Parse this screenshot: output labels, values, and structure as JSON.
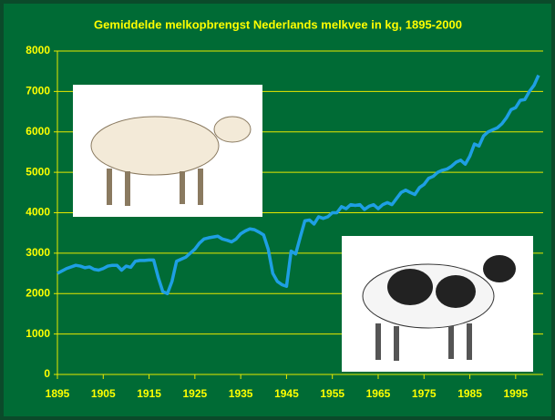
{
  "chart_data": {
    "type": "line",
    "title": "Gemiddelde melkopbrengst  Nederlands melkvee in kg, 1895-2000",
    "x": [
      1895,
      1897,
      1899,
      1900,
      1901,
      1902,
      1903,
      1904,
      1905,
      1906,
      1907,
      1908,
      1909,
      1910,
      1911,
      1912,
      1913,
      1914,
      1915,
      1916,
      1917,
      1918,
      1919,
      1920,
      1921,
      1922,
      1923,
      1924,
      1925,
      1926,
      1927,
      1928,
      1929,
      1930,
      1931,
      1932,
      1933,
      1934,
      1935,
      1936,
      1937,
      1938,
      1939,
      1940,
      1941,
      1942,
      1943,
      1944,
      1945,
      1946,
      1947,
      1948,
      1949,
      1950,
      1951,
      1952,
      1953,
      1954,
      1955,
      1956,
      1957,
      1958,
      1959,
      1960,
      1961,
      1962,
      1963,
      1964,
      1965,
      1966,
      1967,
      1968,
      1969,
      1970,
      1971,
      1972,
      1973,
      1974,
      1975,
      1976,
      1977,
      1978,
      1979,
      1980,
      1981,
      1982,
      1983,
      1984,
      1985,
      1986,
      1987,
      1988,
      1989,
      1990,
      1991,
      1992,
      1993,
      1994,
      1995,
      1996,
      1997,
      1998,
      1999,
      2000
    ],
    "series": [
      {
        "color": "#1e9fe3",
        "values": [
          2500,
          2620,
          2700,
          2680,
          2640,
          2660,
          2600,
          2580,
          2620,
          2680,
          2700,
          2700,
          2580,
          2680,
          2650,
          2800,
          2820,
          2820,
          2830,
          2830,
          2400,
          2050,
          2000,
          2300,
          2800,
          2850,
          2900,
          3000,
          3100,
          3250,
          3350,
          3380,
          3400,
          3420,
          3350,
          3320,
          3280,
          3350,
          3480,
          3550,
          3600,
          3580,
          3520,
          3450,
          3100,
          2500,
          2300,
          2220,
          2180,
          3050,
          2980,
          3400,
          3800,
          3820,
          3720,
          3900,
          3860,
          3900,
          4000,
          4000,
          4150,
          4100,
          4200,
          4180,
          4200,
          4080,
          4160,
          4200,
          4100,
          4200,
          4250,
          4200,
          4350,
          4500,
          4560,
          4500,
          4450,
          4620,
          4700,
          4850,
          4900,
          5000,
          5050,
          5080,
          5150,
          5250,
          5300,
          5200,
          5400,
          5700,
          5650,
          5900,
          6000,
          6050,
          6100,
          6200,
          6350,
          6550,
          6600,
          6780,
          6800,
          7000,
          7150,
          7400
        ]
      }
    ],
    "xlim": [
      1895,
      2001
    ],
    "xticks": [
      1895,
      1905,
      1915,
      1925,
      1935,
      1945,
      1955,
      1965,
      1975,
      1985,
      1995
    ],
    "ylim": [
      0,
      8000
    ],
    "yticks": [
      0,
      1000,
      2000,
      3000,
      4000,
      5000,
      6000,
      7000,
      8000
    ],
    "grid": true
  }
}
